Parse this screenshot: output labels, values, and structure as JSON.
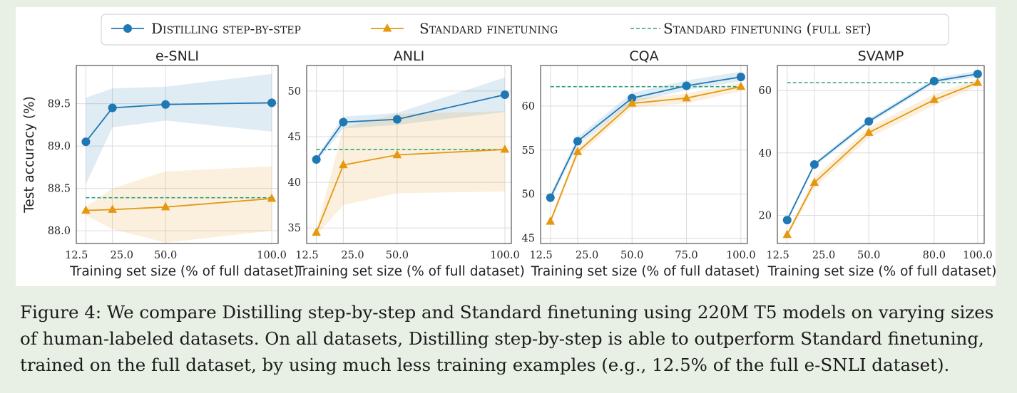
{
  "legend": {
    "items": [
      {
        "label": "Distilling step-by-step",
        "color": "#1f77b4",
        "marker": "circle",
        "style": "solid"
      },
      {
        "label": "Standard finetuning",
        "color": "#e69710",
        "marker": "triangle",
        "style": "solid"
      },
      {
        "label": "Standard finetuning (full set)",
        "color": "#2ca37a",
        "marker": "none",
        "style": "dashed"
      }
    ]
  },
  "caption": "Figure 4: We compare Distilling step-by-step and Standard finetuning using 220M T5 models on varying sizes of human-labeled datasets. On all datasets, Distilling step-by-step is able to outperform Standard finetuning, trained on the full dataset, by using much less training examples (e.g., 12.5% of the full e-SNLI dataset).",
  "chart_data": [
    {
      "type": "line",
      "title": "e-SNLI",
      "xlabel": "Training set size (% of full dataset)",
      "ylabel": "Test accuracy (%)",
      "x_ticks": [
        "12.5",
        "25.0",
        "50.0",
        "100.0"
      ],
      "y_ticks": [
        88.0,
        88.5,
        89.0,
        89.5
      ],
      "y_tick_labels": [
        "88.0",
        "88.5",
        "89.0",
        "89.5"
      ],
      "xlim": [
        8,
        103
      ],
      "ylim": [
        87.85,
        89.95
      ],
      "grid": true,
      "series": [
        {
          "name": "Distilling step-by-step",
          "x": [
            12.5,
            25,
            50,
            100
          ],
          "y": [
            89.05,
            89.45,
            89.49,
            89.51
          ],
          "band_low": [
            88.55,
            89.22,
            89.3,
            89.17
          ],
          "band_high": [
            89.57,
            89.68,
            89.7,
            89.85
          ]
        },
        {
          "name": "Standard finetuning",
          "x": [
            12.5,
            25,
            50,
            100
          ],
          "y": [
            88.24,
            88.25,
            88.28,
            88.38
          ],
          "band_low": [
            88.18,
            88.02,
            87.86,
            88.0
          ],
          "band_high": [
            88.28,
            88.5,
            88.7,
            88.76
          ]
        }
      ],
      "reference_line": {
        "name": "Standard finetuning (full set)",
        "y": 88.39
      }
    },
    {
      "type": "line",
      "title": "ANLI",
      "xlabel": "Training set size (% of full dataset)",
      "ylabel": "",
      "x_ticks": [
        "12.5",
        "25.0",
        "50.0",
        "100.0"
      ],
      "y_ticks": [
        35,
        40,
        45,
        50
      ],
      "y_tick_labels": [
        "35",
        "40",
        "45",
        "50"
      ],
      "xlim": [
        8,
        103
      ],
      "ylim": [
        33.3,
        52.8
      ],
      "grid": true,
      "series": [
        {
          "name": "Distilling step-by-step",
          "x": [
            12.5,
            25,
            50,
            100
          ],
          "y": [
            42.5,
            46.6,
            46.9,
            49.6
          ],
          "band_low": [
            42.2,
            45.9,
            46.3,
            47.7
          ],
          "band_high": [
            42.8,
            47.2,
            47.6,
            51.5
          ]
        },
        {
          "name": "Standard finetuning",
          "x": [
            12.5,
            25,
            50,
            100
          ],
          "y": [
            34.5,
            41.9,
            43.0,
            43.6
          ],
          "band_low": [
            34.2,
            37.5,
            38.8,
            39.0
          ],
          "band_high": [
            34.8,
            46.0,
            47.5,
            47.8
          ]
        }
      ],
      "reference_line": {
        "name": "Standard finetuning (full set)",
        "y": 43.6
      }
    },
    {
      "type": "line",
      "title": "CQA",
      "xlabel": "Training set size (% of full dataset)",
      "ylabel": "",
      "x_ticks": [
        "12.5",
        "25.0",
        "50.0",
        "75.0",
        "100.0"
      ],
      "y_ticks": [
        45,
        50,
        55,
        60
      ],
      "y_tick_labels": [
        "45",
        "50",
        "55",
        "60"
      ],
      "xlim": [
        8,
        103
      ],
      "ylim": [
        44.4,
        64.6
      ],
      "grid": true,
      "series": [
        {
          "name": "Distilling step-by-step",
          "x": [
            12.5,
            25,
            50,
            75,
            100
          ],
          "y": [
            49.6,
            56.0,
            60.9,
            62.3,
            63.3
          ],
          "band_low": [
            49.2,
            55.5,
            60.4,
            61.8,
            62.8
          ],
          "band_high": [
            50.0,
            56.5,
            61.5,
            62.9,
            63.9
          ]
        },
        {
          "name": "Standard finetuning",
          "x": [
            12.5,
            25,
            50,
            75,
            100
          ],
          "y": [
            46.9,
            54.8,
            60.3,
            60.9,
            62.2
          ],
          "band_low": [
            46.5,
            54.3,
            59.8,
            60.3,
            61.7
          ],
          "band_high": [
            47.2,
            55.3,
            60.8,
            61.4,
            62.7
          ]
        }
      ],
      "reference_line": {
        "name": "Standard finetuning (full set)",
        "y": 62.2
      }
    },
    {
      "type": "line",
      "title": "SVAMP",
      "xlabel": "Training set size (% of full dataset)",
      "ylabel": "",
      "x_ticks": [
        "12.5",
        "25.0",
        "50.0",
        "80.0",
        "100.0"
      ],
      "y_ticks": [
        20,
        40,
        60
      ],
      "y_tick_labels": [
        "20",
        "40",
        "60"
      ],
      "xlim": [
        8,
        103
      ],
      "ylim": [
        11.0,
        68.0
      ],
      "grid": true,
      "series": [
        {
          "name": "Distilling step-by-step",
          "x": [
            12.5,
            25,
            50,
            80,
            100
          ],
          "y": [
            18.5,
            36.3,
            50.1,
            63.0,
            65.3
          ],
          "band_low": [
            17.8,
            35.6,
            49.3,
            62.2,
            64.3
          ],
          "band_high": [
            19.2,
            37.0,
            50.9,
            63.8,
            66.3
          ]
        },
        {
          "name": "Standard finetuning",
          "x": [
            12.5,
            25,
            50,
            80,
            100
          ],
          "y": [
            13.8,
            30.5,
            46.5,
            57.0,
            62.5
          ],
          "band_low": [
            13.0,
            28.8,
            44.8,
            55.2,
            61.3
          ],
          "band_high": [
            14.6,
            32.2,
            48.2,
            58.8,
            63.7
          ]
        }
      ],
      "reference_line": {
        "name": "Standard finetuning (full set)",
        "y": 62.5
      }
    }
  ]
}
